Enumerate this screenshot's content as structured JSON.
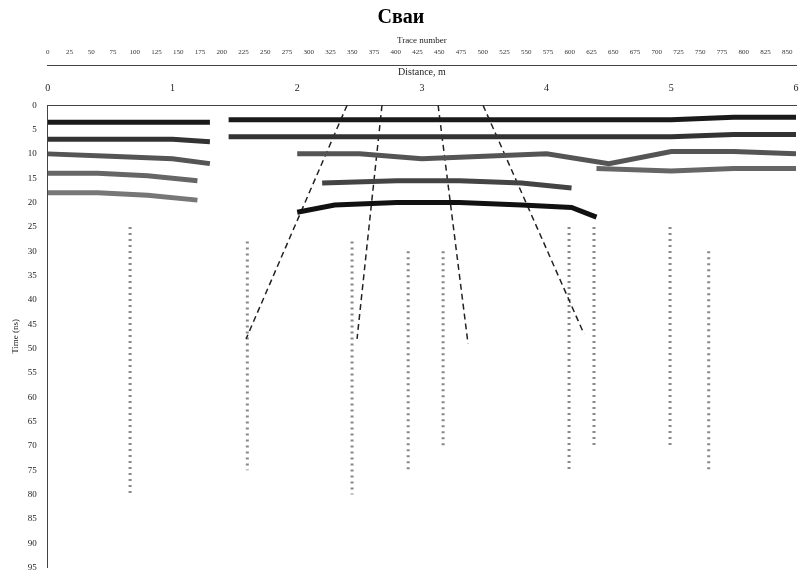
{
  "chart_data": {
    "type": "line",
    "title": "Сваи",
    "x_label": "Distance, m",
    "x2_label": "Trace number",
    "y_label": "Time (ns)",
    "xlim": [
      0,
      6
    ],
    "xticks": [
      0,
      1,
      2,
      3,
      4,
      5,
      6
    ],
    "x2lim": [
      0,
      860
    ],
    "x2ticks": [
      0,
      25,
      50,
      75,
      100,
      125,
      150,
      175,
      200,
      225,
      250,
      275,
      300,
      325,
      350,
      375,
      400,
      425,
      450,
      475,
      500,
      525,
      550,
      575,
      600,
      625,
      650,
      675,
      700,
      725,
      750,
      775,
      800,
      825,
      850
    ],
    "ylim": [
      0,
      95
    ],
    "yticks": [
      0,
      5,
      10,
      15,
      20,
      25,
      30,
      35,
      40,
      45,
      50,
      55,
      60,
      65,
      70,
      75,
      80,
      85,
      90,
      95
    ],
    "grid": false,
    "series": [
      {
        "color": "#1a1a1a",
        "line_style": "solid",
        "x": [
          0,
          0.5,
          1,
          1.3,
          1.35,
          1.45,
          2,
          2.5,
          3,
          3.5,
          4,
          4.5,
          5,
          5.5,
          6
        ],
        "values": [
          3.5,
          3.5,
          3.5,
          3.5,
          null,
          3,
          3,
          3,
          3,
          3,
          3,
          3,
          3,
          2.5,
          2.5
        ]
      },
      {
        "color": "#333333",
        "line_style": "solid",
        "x": [
          0,
          0.5,
          1,
          1.3,
          1.35,
          1.45,
          2,
          2.5,
          3,
          3.5,
          4,
          4.5,
          5,
          5.5,
          6
        ],
        "values": [
          7,
          7,
          7,
          7.5,
          null,
          6.5,
          6.5,
          6.5,
          6.5,
          6.5,
          6.5,
          6.5,
          6.5,
          6,
          6
        ]
      },
      {
        "color": "#555555",
        "line_style": "solid",
        "x": [
          0,
          0.5,
          1,
          1.3,
          1.5,
          2,
          2.5,
          3,
          3.5,
          4,
          4.5,
          5,
          5.5,
          6
        ],
        "values": [
          10,
          10.5,
          11,
          12,
          null,
          10,
          10,
          11,
          10.5,
          10,
          12,
          9.5,
          9.5,
          10
        ]
      },
      {
        "color": "#666666",
        "line_style": "solid",
        "x": [
          0,
          0.4,
          0.8,
          1.2,
          1.3,
          4.4,
          5,
          5.5,
          6
        ],
        "values": [
          14,
          14,
          14.5,
          15.5,
          null,
          13,
          13.5,
          13,
          13
        ]
      },
      {
        "color": "#777777",
        "line_style": "solid",
        "x": [
          0,
          0.4,
          0.8,
          1.2
        ],
        "values": [
          18,
          18,
          18.5,
          19.5
        ]
      },
      {
        "color": "#111111",
        "line_style": "solid",
        "x": [
          2.0,
          2.3,
          2.8,
          3.3,
          3.8,
          4.2,
          4.4
        ],
        "values": [
          22,
          20.5,
          20,
          20,
          20.5,
          21,
          23
        ]
      },
      {
        "color": "#444444",
        "line_style": "solid",
        "x": [
          2.2,
          2.8,
          3.3,
          3.8,
          4.2
        ],
        "values": [
          16,
          15.5,
          15.5,
          16,
          17
        ]
      },
      {
        "color": "#222222",
        "line_style": "dashed",
        "x": [
          2.4,
          1.59
        ],
        "values": [
          0,
          48
        ]
      },
      {
        "color": "#222222",
        "line_style": "dashed",
        "x": [
          2.68,
          2.48
        ],
        "values": [
          0,
          48
        ]
      },
      {
        "color": "#222222",
        "line_style": "dashed",
        "x": [
          3.13,
          3.37
        ],
        "values": [
          0,
          49
        ]
      },
      {
        "color": "#222222",
        "line_style": "dashed",
        "x": [
          3.49,
          4.3
        ],
        "values": [
          0,
          47
        ]
      },
      {
        "color": "#888888",
        "line_style": "dotted",
        "x": [
          0.66,
          0.66
        ],
        "values": [
          25,
          80
        ]
      },
      {
        "color": "#888888",
        "line_style": "dotted",
        "x": [
          1.6,
          1.6
        ],
        "values": [
          28,
          75
        ]
      },
      {
        "color": "#888888",
        "line_style": "dotted",
        "x": [
          2.44,
          2.44
        ],
        "values": [
          28,
          80
        ]
      },
      {
        "color": "#888888",
        "line_style": "dotted",
        "x": [
          2.89,
          2.89
        ],
        "values": [
          30,
          75
        ]
      },
      {
        "color": "#888888",
        "line_style": "dotted",
        "x": [
          3.17,
          3.17
        ],
        "values": [
          30,
          70
        ]
      },
      {
        "color": "#888888",
        "line_style": "dotted",
        "x": [
          4.18,
          4.18
        ],
        "values": [
          25,
          75
        ]
      },
      {
        "color": "#888888",
        "line_style": "dotted",
        "x": [
          4.38,
          4.38
        ],
        "values": [
          25,
          70
        ]
      },
      {
        "color": "#888888",
        "line_style": "dotted",
        "x": [
          4.99,
          4.99
        ],
        "values": [
          25,
          70
        ]
      },
      {
        "color": "#888888",
        "line_style": "dotted",
        "x": [
          5.3,
          5.3
        ],
        "values": [
          30,
          75
        ]
      }
    ]
  }
}
